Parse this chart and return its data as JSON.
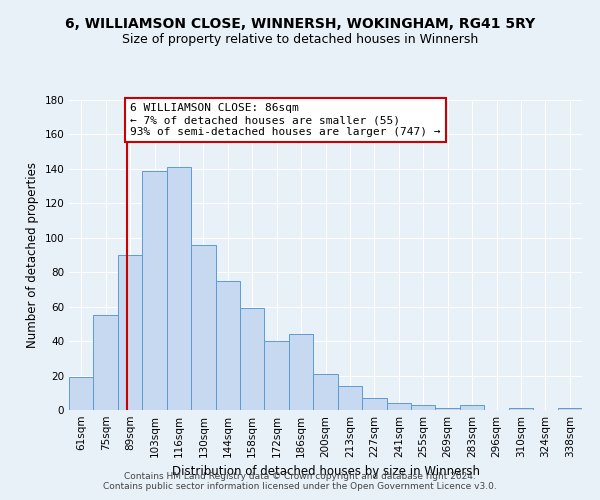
{
  "title": "6, WILLIAMSON CLOSE, WINNERSH, WOKINGHAM, RG41 5RY",
  "subtitle": "Size of property relative to detached houses in Winnersh",
  "xlabel": "Distribution of detached houses by size in Winnersh",
  "ylabel": "Number of detached properties",
  "bar_labels": [
    "61sqm",
    "75sqm",
    "89sqm",
    "103sqm",
    "116sqm",
    "130sqm",
    "144sqm",
    "158sqm",
    "172sqm",
    "186sqm",
    "200sqm",
    "213sqm",
    "227sqm",
    "241sqm",
    "255sqm",
    "269sqm",
    "283sqm",
    "296sqm",
    "310sqm",
    "324sqm",
    "338sqm"
  ],
  "bar_heights": [
    19,
    55,
    90,
    139,
    141,
    96,
    75,
    59,
    40,
    44,
    21,
    14,
    7,
    4,
    3,
    1,
    3,
    0,
    1,
    0,
    1
  ],
  "bar_color": "#c6d9f0",
  "bar_edge_color": "#5b9bd5",
  "ylim": [
    0,
    180
  ],
  "yticks": [
    0,
    20,
    40,
    60,
    80,
    100,
    120,
    140,
    160,
    180
  ],
  "vline_x_index": 1.86,
  "vline_color": "#cc0000",
  "annotation_text": "6 WILLIAMSON CLOSE: 86sqm\n← 7% of detached houses are smaller (55)\n93% of semi-detached houses are larger (747) →",
  "annotation_box_color": "#ffffff",
  "annotation_box_edgecolor": "#cc0000",
  "footer_line1": "Contains HM Land Registry data © Crown copyright and database right 2024.",
  "footer_line2": "Contains public sector information licensed under the Open Government Licence v3.0.",
  "background_color": "#e8f0f8",
  "plot_background_color": "#e8f0f8",
  "grid_color": "#ffffff",
  "title_fontsize": 10,
  "subtitle_fontsize": 9,
  "axis_label_fontsize": 8.5,
  "tick_fontsize": 7.5,
  "annotation_fontsize": 8,
  "footer_fontsize": 6.5
}
